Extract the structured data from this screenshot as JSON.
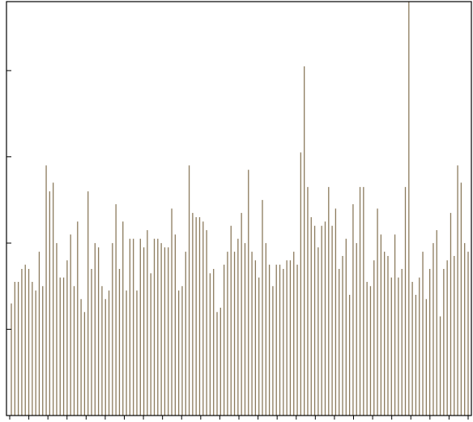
{
  "colors": {
    "bars": "#8b7a5c",
    "axes": "#000000",
    "background": "#ffffff"
  },
  "chart_data": {
    "type": "bar",
    "title": "",
    "xlabel": "",
    "ylabel": "",
    "grid": false,
    "legend": "none",
    "x_ticks_count": 25,
    "y_tick_values": [
      1,
      2,
      3,
      4
    ],
    "ylim": [
      0,
      4.8
    ],
    "values": [
      1.3,
      1.55,
      1.55,
      1.7,
      1.75,
      1.7,
      1.55,
      1.45,
      1.9,
      1.5,
      2.9,
      2.6,
      2.7,
      2.0,
      1.6,
      1.6,
      1.8,
      2.1,
      1.5,
      2.25,
      1.35,
      1.2,
      2.6,
      1.7,
      2.0,
      1.95,
      1.5,
      1.35,
      1.45,
      2.0,
      2.45,
      1.7,
      2.25,
      1.45,
      2.05,
      2.05,
      1.45,
      2.05,
      1.95,
      2.15,
      1.65,
      2.05,
      2.05,
      2.0,
      1.95,
      1.95,
      2.4,
      2.1,
      1.45,
      1.5,
      1.9,
      2.9,
      2.35,
      2.3,
      2.3,
      2.25,
      2.15,
      1.65,
      1.7,
      1.2,
      1.25,
      1.75,
      1.9,
      2.2,
      1.9,
      2.05,
      2.35,
      2.0,
      2.85,
      1.9,
      1.8,
      1.6,
      2.5,
      2.0,
      1.75,
      1.5,
      1.75,
      1.75,
      1.7,
      1.8,
      1.8,
      1.9,
      1.75,
      3.05,
      4.05,
      2.65,
      2.3,
      2.2,
      1.95,
      2.2,
      2.25,
      2.65,
      2.2,
      2.4,
      1.7,
      1.85,
      2.05,
      1.4,
      2.45,
      2.0,
      2.65,
      2.65,
      1.55,
      1.5,
      1.8,
      2.4,
      2.1,
      1.9,
      1.85,
      1.6,
      2.1,
      1.6,
      1.7,
      2.65,
      4.8,
      1.55,
      1.4,
      1.6,
      1.9,
      1.35,
      1.7,
      2.0,
      2.15,
      1.15,
      1.7,
      1.8,
      2.35,
      1.85,
      2.9,
      2.7,
      2.0,
      1.9
    ]
  }
}
